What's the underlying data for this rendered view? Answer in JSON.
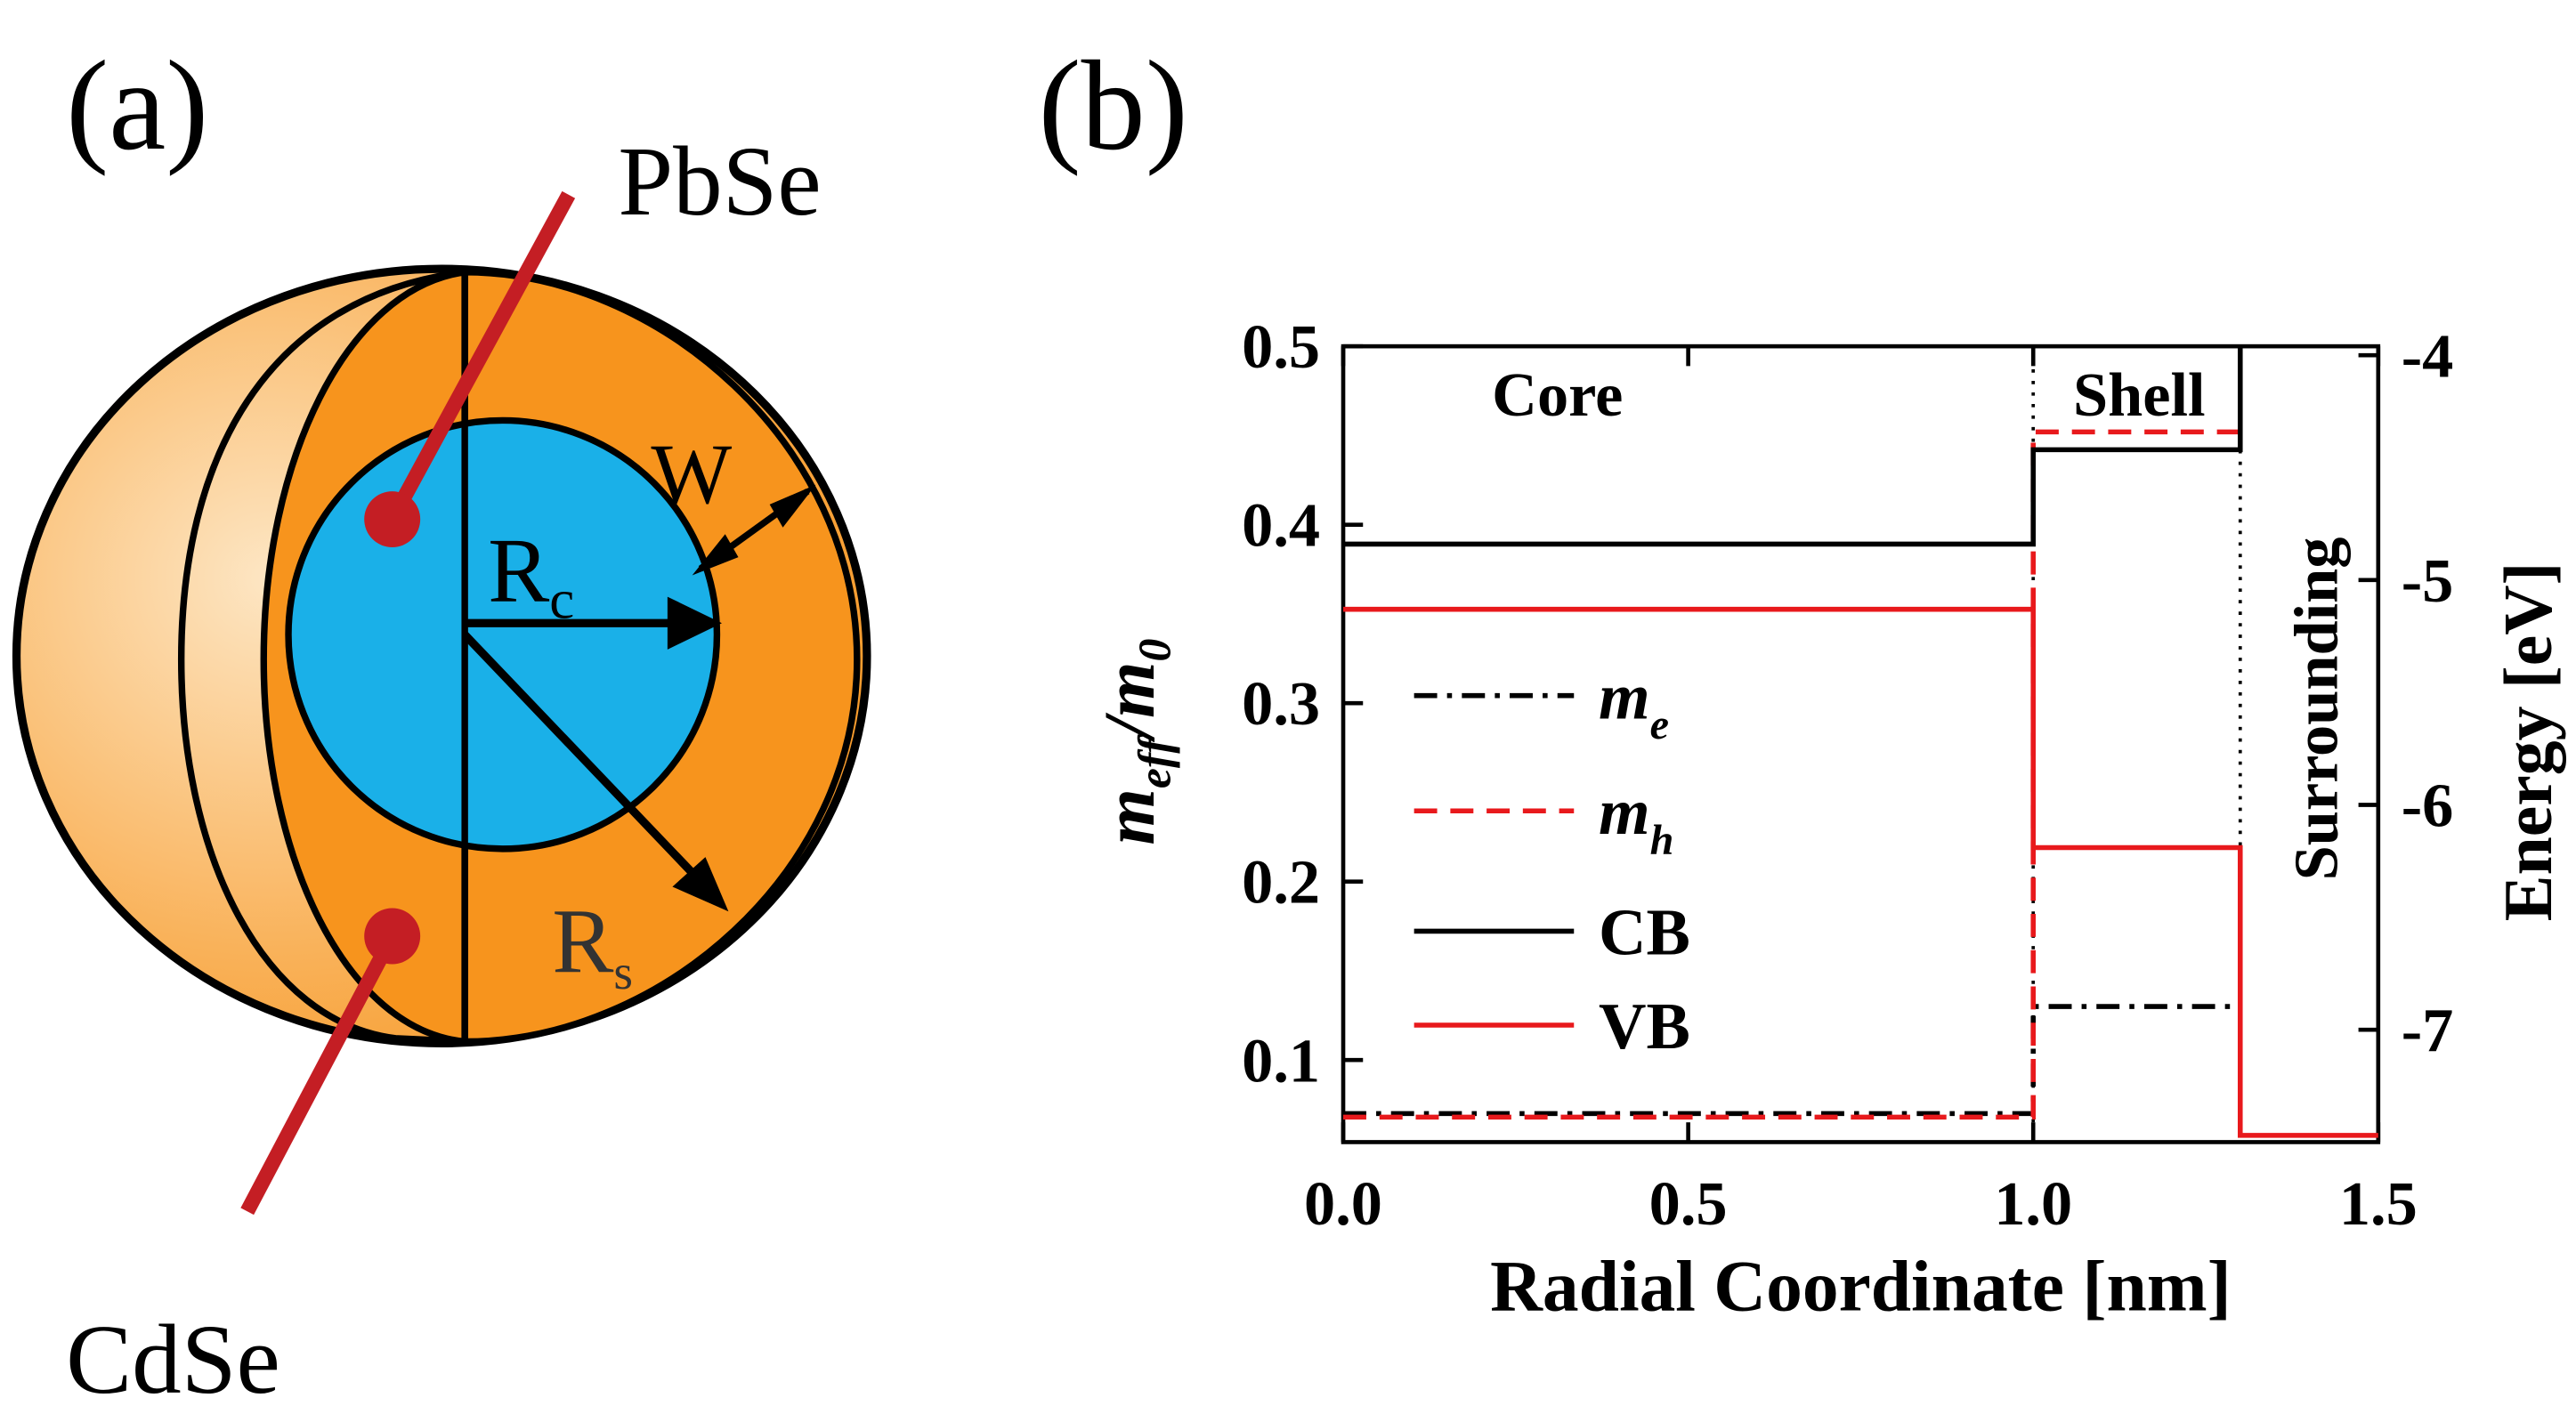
{
  "panel_a": {
    "label": "(a)",
    "top_material": "PbSe",
    "bottom_material": "CdSe",
    "width_label": "W",
    "core_radius": [
      "R",
      "c"
    ],
    "shell_radius": [
      "R",
      "s"
    ]
  },
  "chart_data": {
    "type": "line",
    "label": "(b)",
    "xlabel": "Radial Coordinate [nm]",
    "ylabel": [
      "m",
      "eff",
      "/m",
      "0"
    ],
    "y2label": "Energy [eV]",
    "regions": [
      "Core",
      "Shell",
      "Surrounding"
    ],
    "xlim": [
      0,
      1.5
    ],
    "xticks": [
      {
        "value": 0,
        "label": "0.0"
      },
      0.5,
      {
        "value": 1,
        "label": "1.0"
      },
      1.5
    ],
    "ylim": [
      0.054,
      0.5
    ],
    "yticks": [
      0.1,
      0.2,
      0.3,
      0.4,
      0.5
    ],
    "y2lim": [
      -7.5,
      -3.96
    ],
    "y2ticks": [
      -4,
      -5,
      -6,
      -7
    ],
    "boundaries": [
      1,
      1.3
    ],
    "series": [
      {
        "name": "m",
        "name_sub": "e",
        "color": "#000000",
        "dash": "dashdot",
        "x": [
          0,
          1,
          1,
          1.3
        ],
        "values": [
          0.07,
          0.07,
          0.13,
          0.13
        ]
      },
      {
        "name": "m",
        "name_sub": "h",
        "color": "#e8191c",
        "dash": "dashed",
        "x": [
          0,
          1,
          1,
          1.3
        ],
        "values": [
          0.068,
          0.068,
          0.452,
          0.452
        ]
      },
      {
        "name": "CB",
        "color": "#000000",
        "dash": "solid",
        "axis": "y2",
        "x": [
          0,
          1,
          1,
          1.3,
          1.3
        ],
        "values": [
          -4.84,
          -4.84,
          -4.42,
          -4.42,
          -3.96
        ]
      },
      {
        "name": "VB",
        "color": "#e8191c",
        "dash": "solid",
        "axis": "y2",
        "x": [
          0,
          1,
          1,
          1.3,
          1.3,
          1.5
        ],
        "values": [
          -5.13,
          -5.13,
          -6.19,
          -6.19,
          -7.47,
          -7.47
        ]
      }
    ]
  }
}
